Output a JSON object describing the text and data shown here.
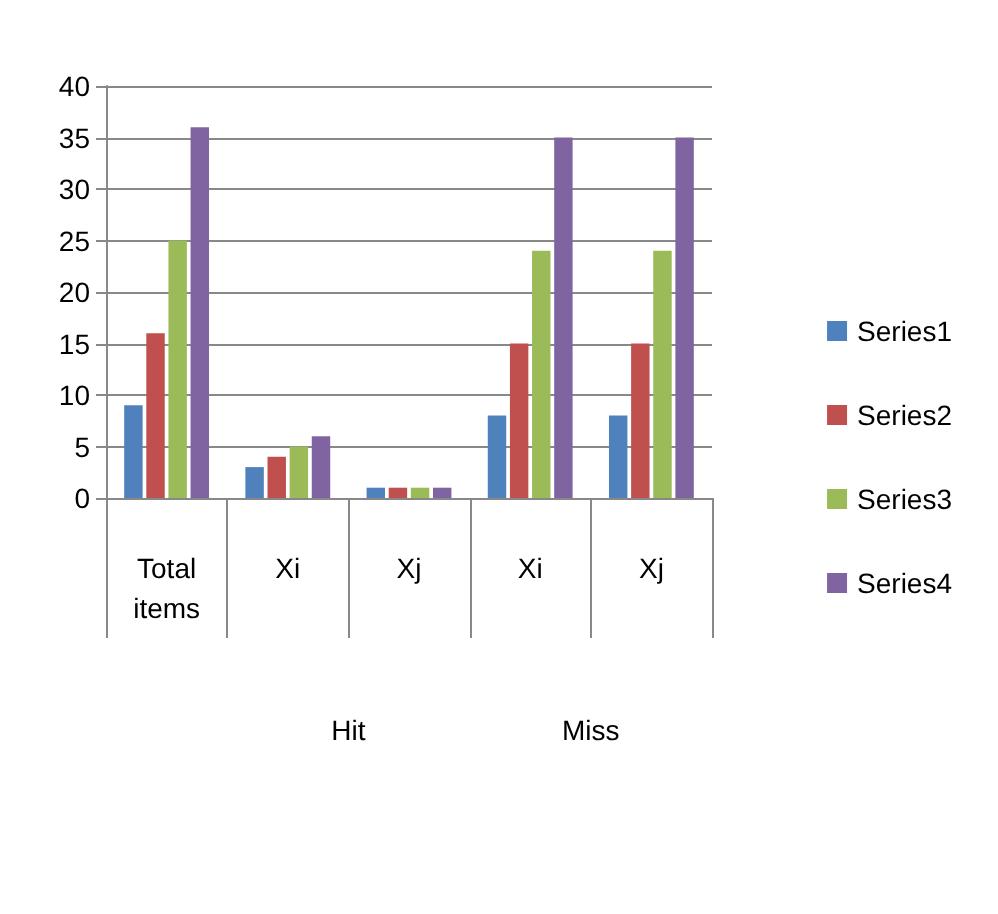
{
  "chart_data": {
    "type": "bar",
    "categories": [
      "Total items",
      "Xi",
      "Xj",
      "Xi",
      "Xj"
    ],
    "annotations": [
      "Hit",
      "Miss"
    ],
    "series": [
      {
        "name": "Series1",
        "color": "#4f81bd",
        "values": [
          9,
          3,
          1,
          8,
          8
        ]
      },
      {
        "name": "Series2",
        "color": "#c0504d",
        "values": [
          16,
          4,
          1,
          15,
          15
        ]
      },
      {
        "name": "Series3",
        "color": "#9bbb59",
        "values": [
          25,
          5,
          1,
          24,
          24
        ]
      },
      {
        "name": "Series4",
        "color": "#8064a2",
        "values": [
          36,
          6,
          1,
          35,
          35
        ]
      }
    ],
    "ylim": [
      0,
      40
    ],
    "yticks": [
      0,
      5,
      10,
      15,
      20,
      25,
      30,
      35,
      40
    ],
    "grid": "y",
    "legend": "right"
  }
}
